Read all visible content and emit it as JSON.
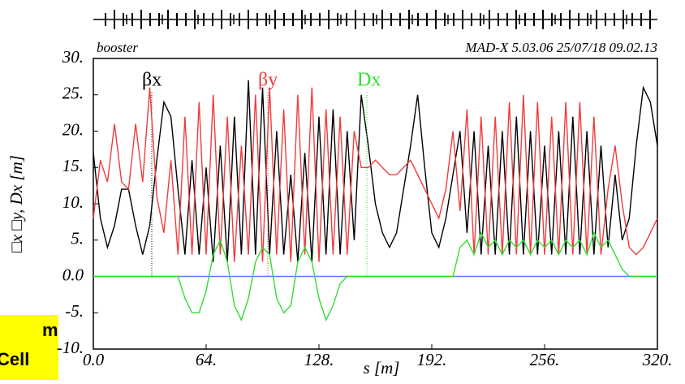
{
  "chart_data": {
    "type": "line",
    "title": "booster",
    "subtitle": "MAD-X 5.03.06  25/07/18 09.02.13",
    "x_label": "s [m]",
    "y_label": "□x □y, Dx [m]",
    "annotations": [
      "m",
      "Cell"
    ],
    "x": [
      0,
      4,
      8,
      12,
      16,
      20,
      24,
      28,
      32,
      36,
      40,
      44,
      48,
      52,
      56,
      60,
      64,
      68,
      72,
      76,
      80,
      84,
      88,
      92,
      96,
      100,
      104,
      108,
      112,
      116,
      120,
      124,
      128,
      132,
      136,
      140,
      144,
      148,
      152,
      156,
      160,
      164,
      168,
      172,
      176,
      180,
      184,
      188,
      192,
      196,
      200,
      204,
      208,
      212,
      216,
      220,
      224,
      228,
      232,
      236,
      240,
      244,
      248,
      252,
      256,
      260,
      264,
      268,
      272,
      276,
      280,
      284,
      288,
      292,
      296,
      300,
      304,
      308,
      312,
      316,
      320
    ],
    "series": [
      {
        "name": "βx",
        "color": "#000000",
        "values": [
          17,
          8,
          4,
          7,
          12,
          12,
          7,
          3,
          7,
          16,
          24,
          22,
          12,
          3,
          16,
          3,
          15,
          2,
          18,
          2,
          22,
          3,
          27,
          3,
          26,
          3,
          20,
          3,
          14,
          2,
          17,
          2,
          22,
          3,
          23,
          3,
          20,
          5,
          25,
          18,
          10,
          6,
          4,
          6,
          12,
          18,
          25,
          15,
          6,
          4,
          8,
          14,
          20,
          6,
          20,
          3,
          18,
          3,
          20,
          3,
          22,
          3,
          20,
          3,
          18,
          3,
          20,
          3,
          22,
          3,
          20,
          3,
          18,
          4,
          14,
          5,
          8,
          18,
          26,
          24,
          18
        ]
      },
      {
        "name": "βy",
        "color": "#f03c3c",
        "values": [
          8,
          16,
          13,
          21,
          13,
          12,
          21,
          13,
          26,
          11,
          6,
          16,
          3,
          22,
          3,
          24,
          3,
          25,
          3,
          22,
          2,
          18,
          3,
          25,
          2,
          26,
          3,
          23,
          2,
          25,
          3,
          26,
          2,
          23,
          3,
          22,
          3,
          20,
          15,
          15,
          16,
          15,
          14,
          14,
          15,
          16,
          14,
          12,
          10,
          8,
          12,
          20,
          9,
          23,
          3,
          22,
          3,
          22,
          3,
          24,
          3,
          25,
          3,
          24,
          3,
          22,
          3,
          24,
          3,
          24,
          3,
          22,
          3,
          12,
          18,
          10,
          4,
          3,
          4,
          6,
          8
        ]
      },
      {
        "name": "Dx",
        "color": "#33dd33",
        "values": [
          0,
          0,
          0,
          0,
          0,
          0,
          0,
          0,
          0,
          0,
          0,
          0,
          0,
          -3,
          -5,
          -5,
          -2,
          3,
          5,
          2,
          -4,
          -6,
          -3,
          2,
          4,
          3,
          -3,
          -5,
          -4,
          2,
          4,
          2,
          -3,
          -6,
          -4,
          -1,
          0,
          0,
          0,
          0,
          0,
          0,
          0,
          0,
          0,
          0,
          0,
          0,
          0,
          0,
          0,
          0,
          4,
          5,
          3,
          6,
          4,
          5,
          3,
          5,
          4,
          5,
          3,
          5,
          4,
          5,
          3,
          5,
          4,
          5,
          3,
          6,
          4,
          5,
          3,
          1,
          0,
          0,
          0,
          0,
          0
        ]
      }
    ],
    "xlim": [
      0,
      320
    ],
    "xticks": [
      {
        "value": 0,
        "label": "0.0"
      },
      {
        "value": 64,
        "label": "64."
      },
      {
        "value": 128,
        "label": "128."
      },
      {
        "value": 192,
        "label": "192."
      },
      {
        "value": 256,
        "label": "256."
      },
      {
        "value": 320,
        "label": "320."
      }
    ],
    "ylim": [
      -10,
      30
    ],
    "yticks": [
      {
        "value": -10,
        "label": "-10."
      },
      {
        "value": -5,
        "label": "-5."
      },
      {
        "value": 0,
        "label": "0.0"
      },
      {
        "value": 5,
        "label": "5."
      },
      {
        "value": 10,
        "label": "10."
      },
      {
        "value": 15,
        "label": "15."
      },
      {
        "value": 20,
        "label": "20."
      },
      {
        "value": 25,
        "label": "25."
      },
      {
        "value": 30,
        "label": "30."
      }
    ]
  }
}
